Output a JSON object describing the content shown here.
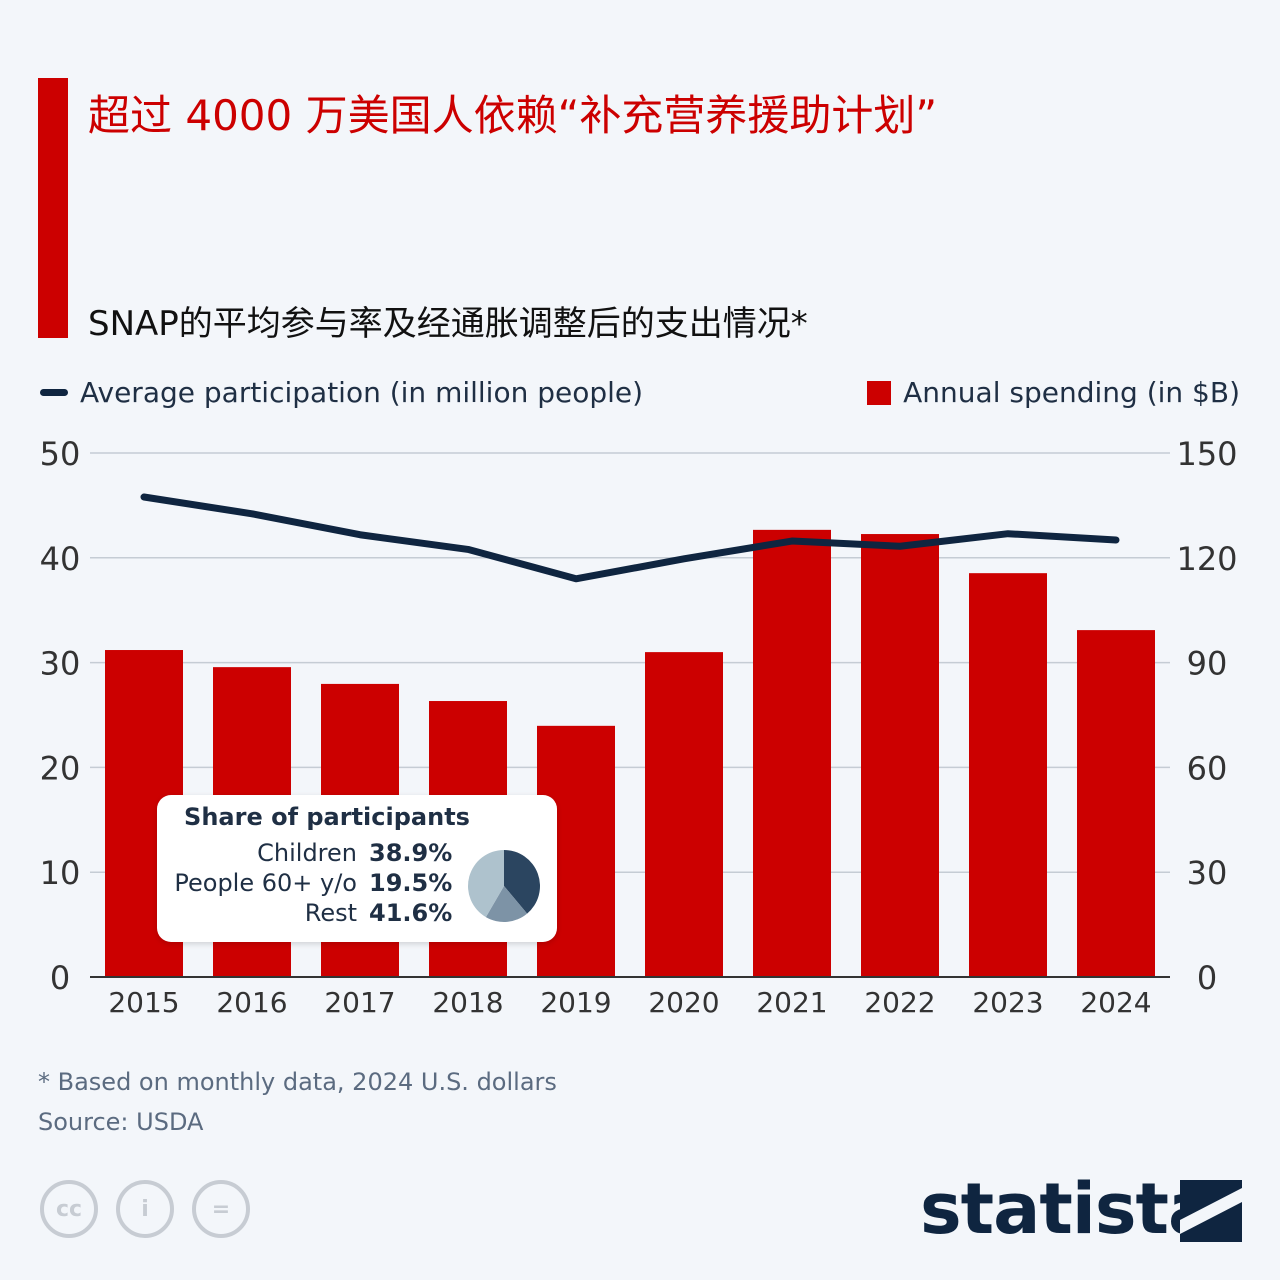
{
  "title": "超过 4000 万美国人依赖“补充营养援助计划”",
  "subtitle": "SNAP的平均参与率及经通胀调整后的支出情况*",
  "chart_data": {
    "type": "bar+line",
    "categories": [
      "2015",
      "2016",
      "2017",
      "2018",
      "2019",
      "2020",
      "2021",
      "2022",
      "2023",
      "2024"
    ],
    "series": [
      {
        "name": "Average participation (in million people)",
        "type": "line",
        "axis": "left",
        "color": "#0f2540",
        "values": [
          45.8,
          44.2,
          42.2,
          40.8,
          38.0,
          39.9,
          41.6,
          41.1,
          42.3,
          41.7
        ]
      },
      {
        "name": "Annual spending (in $B)",
        "type": "bar",
        "axis": "right",
        "color": "#cc0000",
        "values": [
          93.6,
          88.7,
          83.9,
          79.0,
          71.9,
          93.0,
          128.0,
          126.8,
          115.6,
          99.3
        ]
      }
    ],
    "left_axis": {
      "ylim": [
        0,
        50
      ],
      "ticks": [
        "0",
        "10",
        "20",
        "30",
        "40",
        "50"
      ]
    },
    "right_axis": {
      "ylim": [
        0,
        150
      ],
      "ticks": [
        "0",
        "30",
        "60",
        "90",
        "120",
        "150"
      ]
    },
    "grid": true,
    "legend": "top"
  },
  "inset": {
    "title": "Share of participants",
    "items": [
      {
        "label": "Children",
        "value": "38.9%",
        "share": 38.9,
        "color": "#2b4560"
      },
      {
        "label": "People 60+ y/o",
        "value": "19.5%",
        "share": 19.5,
        "color": "#7d93a6"
      },
      {
        "label": "Rest",
        "value": "41.6%",
        "share": 41.6,
        "color": "#aec2cd"
      }
    ]
  },
  "footnote": "* Based on monthly data, 2024 U.S. dollars",
  "source": "Source: USDA",
  "license_icons": [
    "cc",
    "i",
    "="
  ],
  "logo": "statista"
}
